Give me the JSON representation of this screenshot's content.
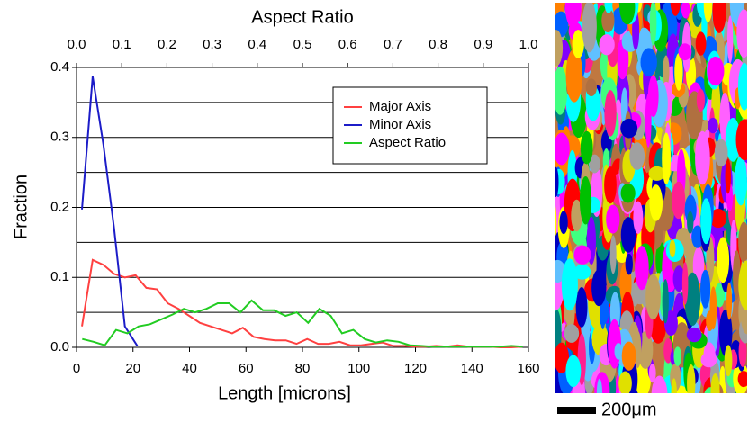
{
  "chart_data": {
    "type": "line",
    "title": "Aspect Ratio",
    "xlabel": "Length [microns]",
    "ylabel": "Fraction",
    "xlim": [
      0,
      160
    ],
    "xticks": [
      0,
      20,
      40,
      60,
      80,
      100,
      120,
      140,
      160
    ],
    "x2lim": [
      0,
      1
    ],
    "x2ticks": [
      {
        "value": 0,
        "label": "0.0"
      },
      0.1,
      0.2,
      0.3,
      0.4,
      0.5,
      0.6,
      0.7,
      0.8,
      0.9,
      {
        "value": 1,
        "label": "1.0"
      }
    ],
    "ylim": [
      0,
      0.4
    ],
    "yticks": [
      {
        "value": 0,
        "label": "0.0"
      },
      0.1,
      0.2,
      0.3,
      0.4
    ],
    "ygrid": [
      0.05,
      0.1,
      0.15,
      0.2,
      0.25,
      0.3,
      0.35
    ],
    "legend": "upper right",
    "series": [
      {
        "name": "Major Axis",
        "color": "#ff4040",
        "x": [
          1.9,
          5.7,
          9.5,
          13.3,
          17.1,
          20.9,
          24.7,
          28.5,
          32.3,
          36.1,
          39.9,
          43.7,
          47.5,
          51.3,
          55.1,
          58.9,
          62.7,
          66.5,
          70.3,
          74.1,
          77.9,
          81.7,
          85.5,
          89.3,
          93.1,
          96.9,
          100.7,
          104.5,
          108.3,
          112.1,
          115.9,
          119.7,
          123.5,
          127.3,
          131.1,
          134.9,
          138.7,
          142.5,
          146.3,
          150.1,
          153.9,
          157.7
        ],
        "values": [
          0.03,
          0.125,
          0.118,
          0.105,
          0.1,
          0.103,
          0.085,
          0.083,
          0.063,
          0.055,
          0.045,
          0.035,
          0.03,
          0.025,
          0.02,
          0.028,
          0.015,
          0.012,
          0.01,
          0.01,
          0.005,
          0.012,
          0.005,
          0.005,
          0.008,
          0.003,
          0.003,
          0.005,
          0.007,
          0.002,
          0.002,
          0.001,
          0.001,
          0.002,
          0.001,
          0.003,
          0.001,
          0.001,
          0.001,
          0.0,
          0.0,
          0.001
        ]
      },
      {
        "name": "Minor Axis",
        "color": "#1c1cc8",
        "x": [
          1.9,
          5.7,
          9.5,
          13.3,
          17.1,
          21.5
        ],
        "values": [
          0.197,
          0.387,
          0.29,
          0.17,
          0.03,
          0.002
        ]
      },
      {
        "name": "Aspect Ratio",
        "color": "#22cc22",
        "axis": "x2",
        "x": [
          0.0125,
          0.0375,
          0.0625,
          0.0875,
          0.1125,
          0.1375,
          0.1625,
          0.1875,
          0.2125,
          0.2375,
          0.2625,
          0.2875,
          0.3125,
          0.3375,
          0.3625,
          0.3875,
          0.4125,
          0.4375,
          0.4625,
          0.4875,
          0.5125,
          0.5375,
          0.5625,
          0.5875,
          0.6125,
          0.6375,
          0.6625,
          0.6875,
          0.7125,
          0.7375,
          0.7625,
          0.7875,
          0.8125,
          0.8375,
          0.8625,
          0.8875,
          0.9125,
          0.9375,
          0.9625,
          0.9875
        ],
        "values": [
          0.012,
          0.008,
          0.003,
          0.025,
          0.02,
          0.03,
          0.033,
          0.04,
          0.047,
          0.055,
          0.05,
          0.055,
          0.063,
          0.063,
          0.05,
          0.067,
          0.053,
          0.053,
          0.045,
          0.05,
          0.035,
          0.055,
          0.045,
          0.02,
          0.025,
          0.012,
          0.007,
          0.01,
          0.008,
          0.003,
          0.002,
          0.001,
          0.001,
          0.001,
          0.001,
          0.001,
          0.001,
          0.001,
          0.002,
          0.001
        ]
      }
    ]
  },
  "micrograph": {
    "scale_bar": "200μm"
  }
}
